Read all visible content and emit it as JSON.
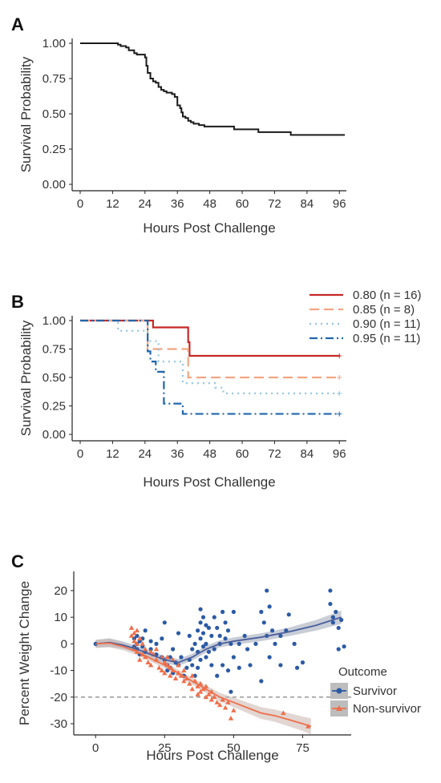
{
  "panels": {
    "A": {
      "label": "A"
    },
    "B": {
      "label": "B"
    },
    "C": {
      "label": "C"
    }
  },
  "chart_data": [
    {
      "panel": "A",
      "type": "line",
      "step": true,
      "xlabel": "Hours Post Challenge",
      "ylabel": "Survival Probability",
      "xlim": [
        0,
        98
      ],
      "ylim": [
        0,
        1
      ],
      "xticks": [
        0,
        12,
        24,
        36,
        48,
        60,
        72,
        84,
        96
      ],
      "yticks": [
        0,
        0.25,
        0.5,
        0.75,
        1
      ],
      "ytick_labels": [
        "0.00",
        "0.25",
        "0.50",
        "0.75",
        "1.00"
      ],
      "color": "#1a1a1a",
      "series": [
        {
          "x": [
            0,
            14,
            15,
            17,
            18,
            20,
            21,
            24,
            24.5,
            25,
            26,
            27,
            28,
            29,
            30,
            31,
            32,
            34,
            35,
            36,
            37,
            37.5,
            38,
            39,
            40,
            41,
            42,
            44,
            46,
            48,
            57,
            59,
            66,
            70,
            78,
            82,
            86,
            90,
            98
          ],
          "y": [
            1.0,
            0.99,
            0.98,
            0.97,
            0.95,
            0.93,
            0.92,
            0.9,
            0.84,
            0.79,
            0.75,
            0.73,
            0.72,
            0.69,
            0.67,
            0.66,
            0.65,
            0.64,
            0.62,
            0.56,
            0.54,
            0.51,
            0.48,
            0.47,
            0.45,
            0.44,
            0.43,
            0.42,
            0.41,
            0.41,
            0.39,
            0.39,
            0.37,
            0.37,
            0.35,
            0.35,
            0.35,
            0.35,
            0.35
          ]
        }
      ]
    },
    {
      "panel": "B",
      "type": "line",
      "step": true,
      "xlabel": "Hours Post Challenge",
      "ylabel": "Survival Probability",
      "xlim": [
        0,
        98
      ],
      "ylim": [
        0,
        1
      ],
      "xticks": [
        0,
        12,
        24,
        36,
        48,
        60,
        72,
        84,
        96
      ],
      "yticks": [
        0,
        0.25,
        0.5,
        0.75,
        1
      ],
      "ytick_labels": [
        "0.00",
        "0.25",
        "0.50",
        "0.75",
        "1.00"
      ],
      "legend_position": "top-right",
      "series": [
        {
          "name": "0.80 (n = 16)",
          "color": "#c62828",
          "dash": "none",
          "x": [
            0,
            27,
            40,
            40.5,
            96
          ],
          "y": [
            1.0,
            0.94,
            0.81,
            0.69,
            0.69
          ]
        },
        {
          "name": "0.85 (n = 8)",
          "color": "#f4a582",
          "dash": "12 6",
          "x": [
            0,
            25,
            40,
            96
          ],
          "y": [
            1.0,
            0.75,
            0.5,
            0.5
          ]
        },
        {
          "name": "0.90 (n = 11)",
          "color": "#92c5de",
          "dash": "2 5",
          "x": [
            0,
            14,
            25,
            29,
            38,
            50,
            53,
            96
          ],
          "y": [
            1.0,
            0.91,
            0.82,
            0.64,
            0.45,
            0.41,
            0.36,
            0.36
          ]
        },
        {
          "name": "0.95 (n = 11)",
          "color": "#2166ac",
          "dash": "10 4 2 4",
          "x": [
            0,
            25,
            26,
            28,
            31,
            38,
            96
          ],
          "y": [
            1.0,
            0.73,
            0.64,
            0.55,
            0.27,
            0.18,
            0.18
          ]
        }
      ]
    },
    {
      "panel": "C",
      "type": "scatter",
      "xlabel": "Hours Post Challenge",
      "ylabel": "Percent Weight Change",
      "xlim": [
        -5,
        92
      ],
      "ylim": [
        -33,
        26
      ],
      "xticks": [
        0,
        25,
        50,
        75
      ],
      "yticks": [
        -30,
        -20,
        -10,
        0,
        10,
        20
      ],
      "hline": -20,
      "legend_title": "Outcome",
      "legend_position": "right",
      "series": [
        {
          "name": "Survivor",
          "color": "#2b5aa5",
          "marker": "circle",
          "points": [
            [
              0,
              0
            ],
            [
              14,
              2
            ],
            [
              14,
              -1
            ],
            [
              15,
              3
            ],
            [
              15,
              -2
            ],
            [
              15,
              0
            ],
            [
              16,
              1
            ],
            [
              16,
              -4
            ],
            [
              17,
              2
            ],
            [
              17,
              -1
            ],
            [
              18,
              -3
            ],
            [
              18,
              5
            ],
            [
              20,
              -2
            ],
            [
              20,
              1
            ],
            [
              22,
              0
            ],
            [
              22,
              -4
            ],
            [
              24,
              -5
            ],
            [
              24,
              2
            ],
            [
              25,
              8
            ],
            [
              25,
              -6
            ],
            [
              26,
              -8
            ],
            [
              26,
              -10
            ],
            [
              27,
              -9
            ],
            [
              27,
              -5
            ],
            [
              28,
              -2
            ],
            [
              28,
              -11
            ],
            [
              29,
              -7
            ],
            [
              30,
              -8
            ],
            [
              30,
              4
            ],
            [
              31,
              -5
            ],
            [
              32,
              -12
            ],
            [
              33,
              -9
            ],
            [
              34,
              -6
            ],
            [
              34,
              3
            ],
            [
              35,
              -8
            ],
            [
              35,
              -2
            ],
            [
              36,
              -12
            ],
            [
              36,
              0
            ],
            [
              37,
              5
            ],
            [
              37,
              -9
            ],
            [
              37,
              -3
            ],
            [
              38,
              8
            ],
            [
              38,
              2
            ],
            [
              38,
              -6
            ],
            [
              38,
              13
            ],
            [
              39,
              10
            ],
            [
              39,
              -1
            ],
            [
              39,
              4
            ],
            [
              40,
              -5
            ],
            [
              40,
              7
            ],
            [
              40,
              0
            ],
            [
              41,
              6
            ],
            [
              41,
              -3
            ],
            [
              42,
              3
            ],
            [
              42,
              -8
            ],
            [
              43,
              10
            ],
            [
              43,
              -2
            ],
            [
              44,
              6
            ],
            [
              44,
              -12
            ],
            [
              45,
              0
            ],
            [
              45,
              3
            ],
            [
              46,
              12
            ],
            [
              46,
              -8
            ],
            [
              47,
              8
            ],
            [
              47,
              2
            ],
            [
              48,
              -10
            ],
            [
              48,
              5
            ],
            [
              49,
              0
            ],
            [
              49,
              -18
            ],
            [
              50,
              12
            ],
            [
              50,
              -5
            ],
            [
              52,
              0
            ],
            [
              52,
              -9
            ],
            [
              54,
              3
            ],
            [
              55,
              -2
            ],
            [
              56,
              -8
            ],
            [
              58,
              0
            ],
            [
              60,
              12
            ],
            [
              60,
              -14
            ],
            [
              61,
              8
            ],
            [
              62,
              20
            ],
            [
              62,
              3
            ],
            [
              63,
              14
            ],
            [
              63,
              -5
            ],
            [
              64,
              5
            ],
            [
              65,
              0
            ],
            [
              67,
              3
            ],
            [
              67,
              -8
            ],
            [
              69,
              5
            ],
            [
              70,
              11
            ],
            [
              72,
              0
            ],
            [
              73,
              -9
            ],
            [
              75,
              -7
            ],
            [
              85,
              20
            ],
            [
              85,
              15
            ],
            [
              86,
              10
            ],
            [
              86,
              8
            ],
            [
              87,
              12
            ],
            [
              88,
              6
            ],
            [
              88,
              -2
            ],
            [
              89,
              9
            ],
            [
              90,
              -1
            ]
          ]
        },
        {
          "name": "Non-survivor",
          "color": "#ef6f4a",
          "marker": "triangle",
          "points": [
            [
              13,
              6
            ],
            [
              13,
              3
            ],
            [
              14,
              4
            ],
            [
              14,
              1
            ],
            [
              14,
              -2
            ],
            [
              15,
              0
            ],
            [
              15,
              -3
            ],
            [
              15,
              5
            ],
            [
              16,
              -6
            ],
            [
              16,
              2
            ],
            [
              17,
              -4
            ],
            [
              17,
              0
            ],
            [
              18,
              -5
            ],
            [
              18,
              -2
            ],
            [
              19,
              -7
            ],
            [
              20,
              -3
            ],
            [
              20,
              -8
            ],
            [
              21,
              -4
            ],
            [
              22,
              -6
            ],
            [
              22,
              -2
            ],
            [
              23,
              -9
            ],
            [
              24,
              -5
            ],
            [
              24,
              -10
            ],
            [
              25,
              -7
            ],
            [
              25,
              -11
            ],
            [
              26,
              -8
            ],
            [
              26,
              -5
            ],
            [
              27,
              -12
            ],
            [
              27,
              -9
            ],
            [
              28,
              -10
            ],
            [
              28,
              -6
            ],
            [
              29,
              -13
            ],
            [
              30,
              -11
            ],
            [
              30,
              -8
            ],
            [
              31,
              -12
            ],
            [
              32,
              -14
            ],
            [
              32,
              -10
            ],
            [
              33,
              -13
            ],
            [
              34,
              -15
            ],
            [
              35,
              -12
            ],
            [
              35,
              -17
            ],
            [
              36,
              -14
            ],
            [
              37,
              -16
            ],
            [
              37,
              -19
            ],
            [
              38,
              -15
            ],
            [
              38,
              -18
            ],
            [
              39,
              -17
            ],
            [
              40,
              -20
            ],
            [
              40,
              -16
            ],
            [
              41,
              -19
            ],
            [
              42,
              -21
            ],
            [
              42,
              -18
            ],
            [
              43,
              -20
            ],
            [
              44,
              -22
            ],
            [
              45,
              -23
            ],
            [
              46,
              -21
            ],
            [
              47,
              -24
            ],
            [
              48,
              -22
            ],
            [
              49,
              -28
            ],
            [
              50,
              -25
            ],
            [
              68,
              -26
            ],
            [
              77,
              -31
            ]
          ]
        }
      ],
      "smooths": [
        {
          "series": "Survivor",
          "color": "#4a5f9e",
          "band": "#9aa4b4",
          "x": [
            0,
            5,
            10,
            15,
            20,
            25,
            30,
            35,
            40,
            45,
            50,
            60,
            70,
            80,
            89
          ],
          "y": [
            0,
            0.5,
            -0.5,
            -2,
            -4,
            -6,
            -7,
            -5,
            -2,
            0,
            1,
            2.5,
            4.5,
            7,
            10
          ],
          "se": [
            1.5,
            1.6,
            1.4,
            1.2,
            1.2,
            1.3,
            1.3,
            1.3,
            1.3,
            1.3,
            1.4,
            1.5,
            1.6,
            2.0,
            2.5
          ]
        },
        {
          "series": "Non-survivor",
          "color": "#ef6f4a",
          "band": "#c9b5ad",
          "x": [
            0,
            5,
            10,
            15,
            20,
            25,
            30,
            35,
            40,
            45,
            50,
            55,
            60,
            65,
            70,
            75,
            78
          ],
          "y": [
            0,
            0.3,
            -1,
            -3,
            -5.5,
            -8,
            -11,
            -14,
            -17,
            -20,
            -22,
            -24,
            -26,
            -27,
            -28.5,
            -30,
            -31
          ],
          "se": [
            1.5,
            1.6,
            1.4,
            1.2,
            1.2,
            1.2,
            1.2,
            1.3,
            1.4,
            1.6,
            1.8,
            2.0,
            2.2,
            2.3,
            2.5,
            2.7,
            3.0
          ]
        }
      ]
    }
  ]
}
